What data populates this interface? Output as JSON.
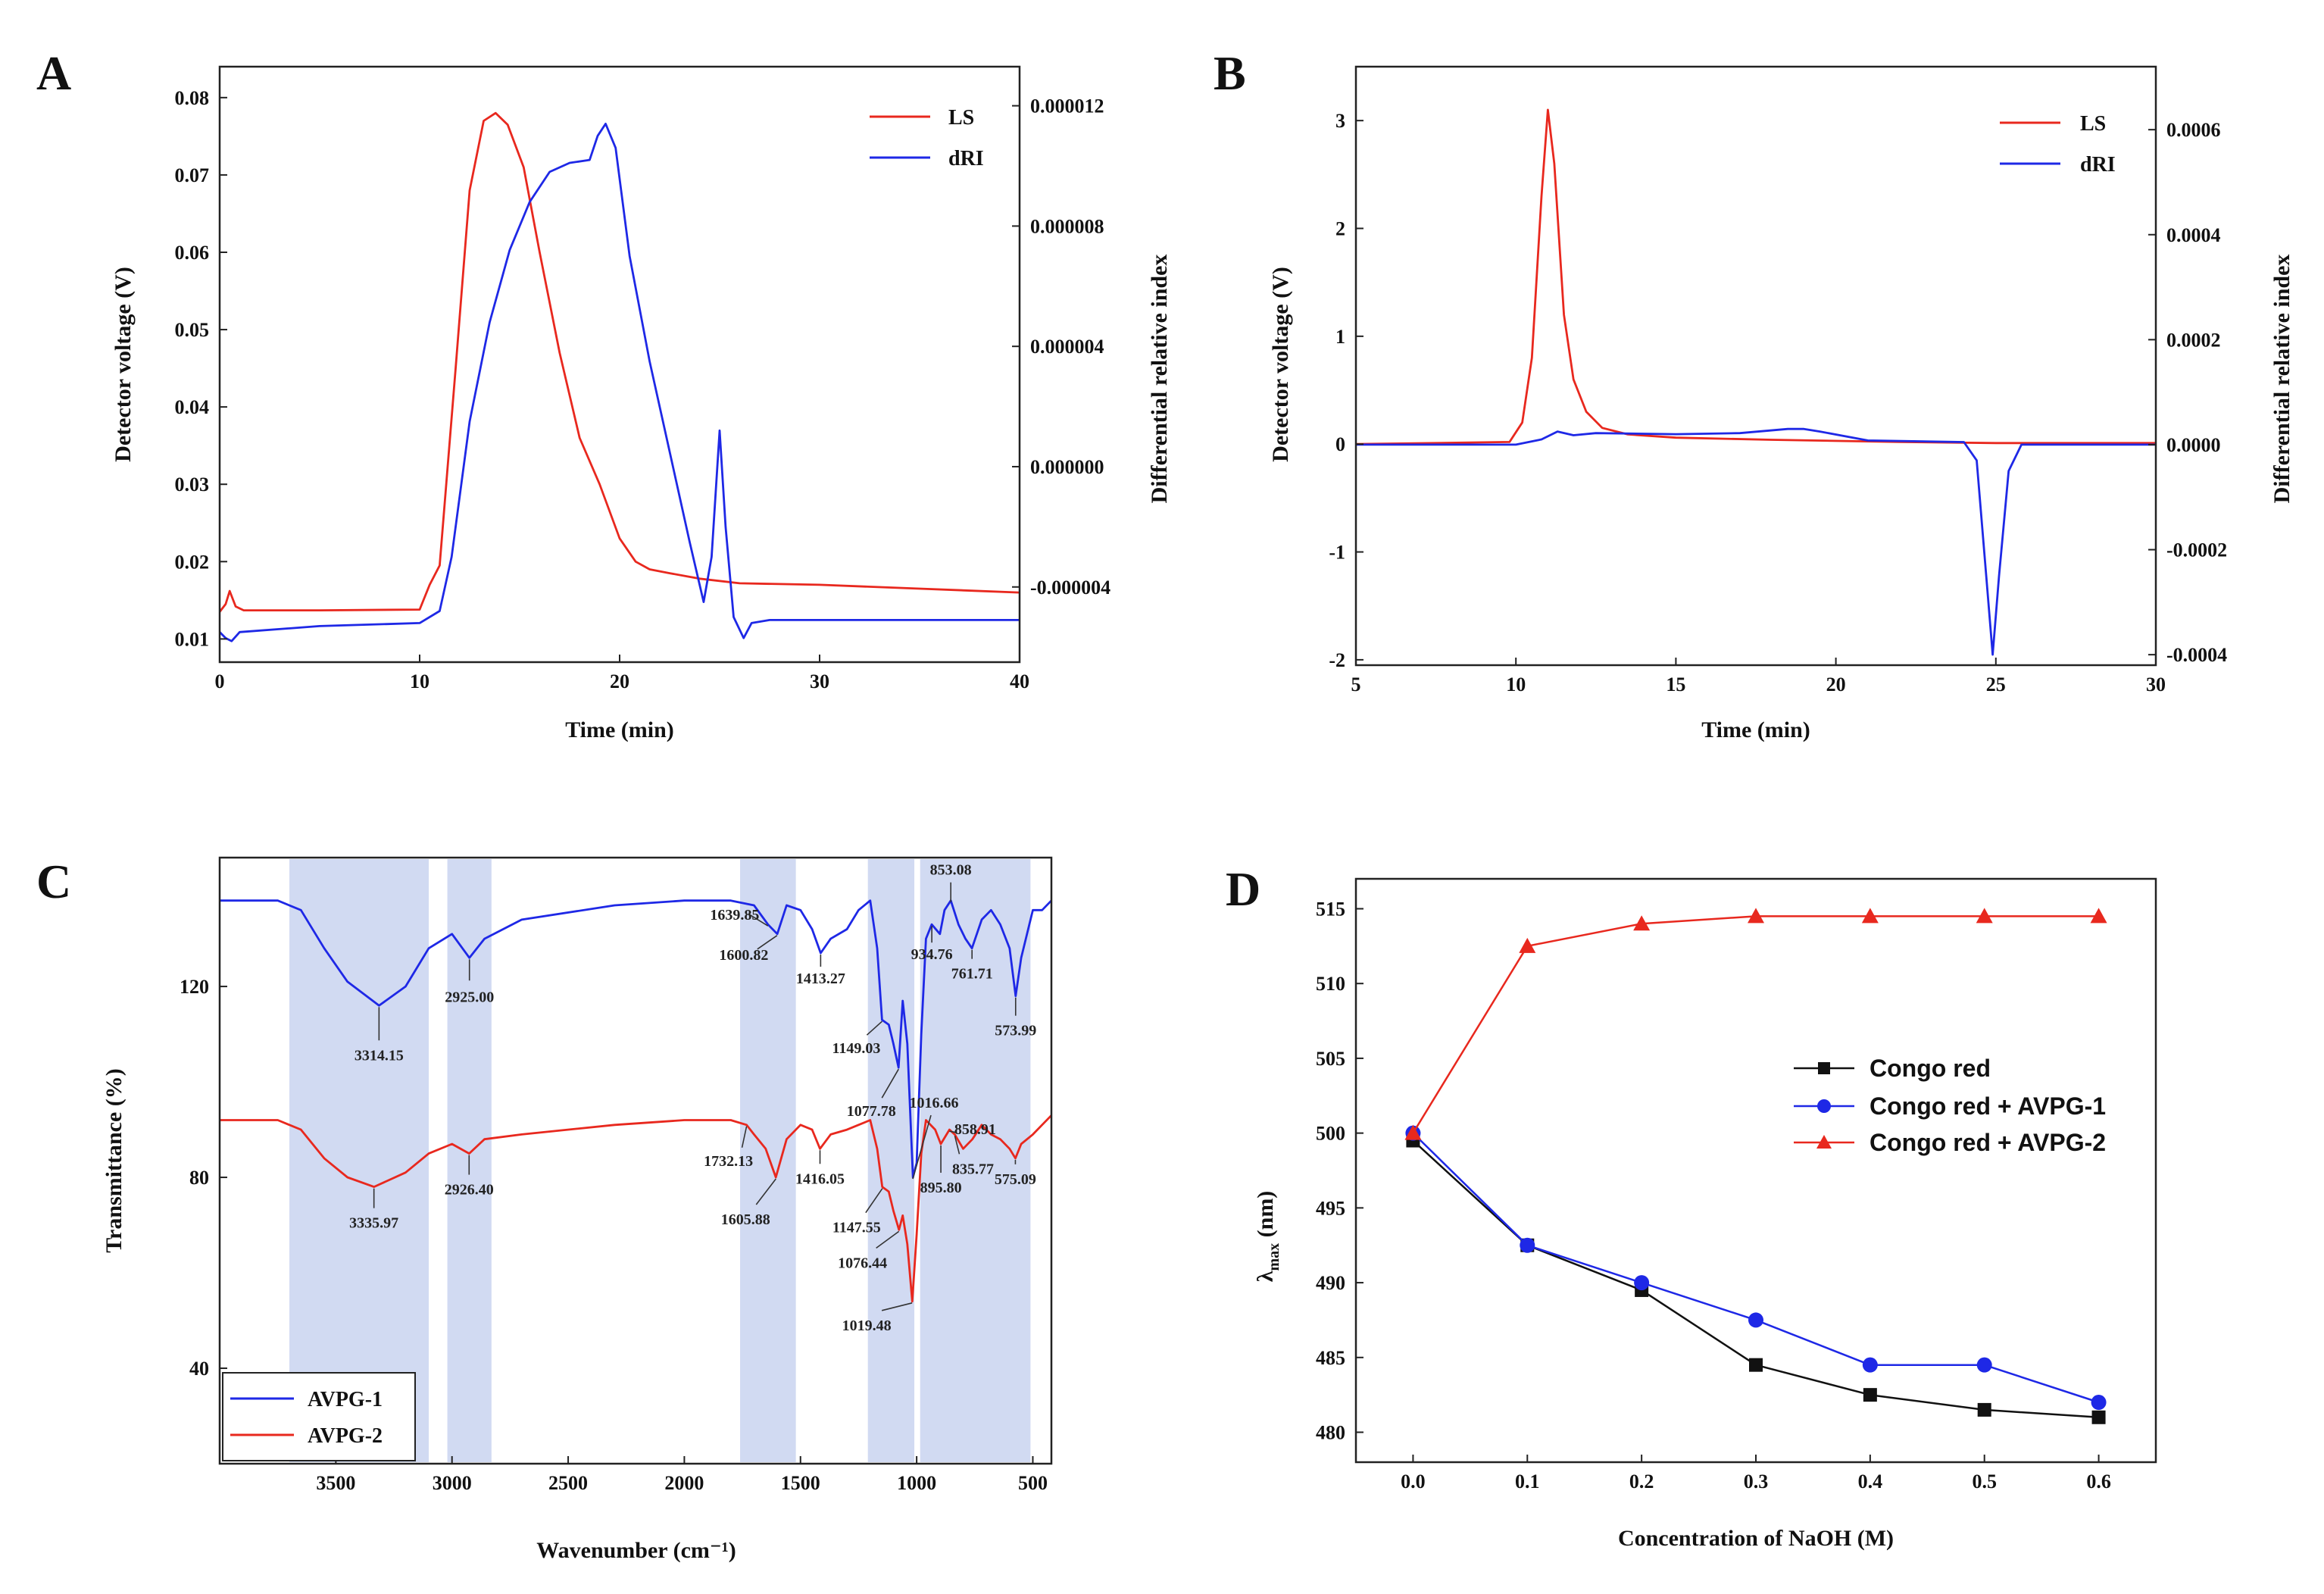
{
  "panels": {
    "A": "A",
    "B": "B",
    "C": "C",
    "D": "D"
  },
  "chart_data": [
    {
      "id": "A",
      "type": "line",
      "xlabel": "Time (min)",
      "ylabel": "Detector voltage (V)",
      "ylabel_right": "Differential relative index",
      "xlim": [
        0,
        40
      ],
      "ylim": [
        0.007,
        0.084
      ],
      "ylim_right": [
        -6.5e-06,
        1.33e-05
      ],
      "xticks": [
        "0",
        "10",
        "20",
        "30",
        "40"
      ],
      "yticks": [
        "0.01",
        "0.02",
        "0.03",
        "0.04",
        "0.05",
        "0.06",
        "0.07",
        "0.08"
      ],
      "yticks_right": [
        "-0.000004",
        "0.000000",
        "0.000004",
        "0.000008",
        "0.000012"
      ],
      "legend_position": "top-right",
      "series": [
        {
          "name": "LS",
          "color": "#e8281e",
          "axis": "left",
          "x": [
            0,
            0.3,
            0.5,
            0.8,
            1.2,
            5,
            10,
            10.5,
            11,
            11.8,
            12.5,
            13.2,
            13.8,
            14.4,
            15.2,
            16,
            17,
            18,
            19,
            20,
            20.8,
            21.5,
            22.5,
            24,
            26,
            30,
            35,
            40
          ],
          "y": [
            0.0135,
            0.0145,
            0.0162,
            0.0142,
            0.0137,
            0.0137,
            0.0138,
            0.017,
            0.0195,
            0.045,
            0.068,
            0.077,
            0.078,
            0.0765,
            0.071,
            0.06,
            0.047,
            0.036,
            0.03,
            0.023,
            0.02,
            0.019,
            0.0185,
            0.0178,
            0.0172,
            0.017,
            0.0165,
            0.016
          ]
        },
        {
          "name": "dRI",
          "color": "#1e28e6",
          "axis": "right",
          "x": [
            0,
            0.3,
            0.6,
            1,
            5,
            10,
            11,
            11.6,
            12.5,
            13.5,
            14.5,
            15.5,
            16.5,
            17.5,
            18.5,
            18.9,
            19.3,
            19.8,
            20.5,
            21.5,
            22.5,
            23.5,
            24.2,
            24.6,
            25,
            25.3,
            25.7,
            26.2,
            26.6,
            27.5,
            30,
            35,
            40
          ],
          "y": [
            -5.5e-06,
            -5.7e-06,
            -5.8e-06,
            -5.5e-06,
            -5.3e-06,
            -5.2e-06,
            -4.8e-06,
            -3e-06,
            1.5e-06,
            4.8e-06,
            7.2e-06,
            8.8e-06,
            9.8e-06,
            1.01e-05,
            1.02e-05,
            1.1e-05,
            1.14e-05,
            1.06e-05,
            7e-06,
            3.5e-06,
            5e-07,
            -2.5e-06,
            -4.5e-06,
            -3e-06,
            1.2e-06,
            -2e-06,
            -5e-06,
            -5.7e-06,
            -5.2e-06,
            -5.1e-06,
            -5.1e-06,
            -5.1e-06,
            -5.1e-06
          ]
        }
      ]
    },
    {
      "id": "B",
      "type": "line",
      "xlabel": "Time (min)",
      "ylabel": "Detector voltage (V)",
      "ylabel_right": "Differential relative index",
      "xlim": [
        5,
        30
      ],
      "ylim": [
        -2.05,
        3.5
      ],
      "ylim_right": [
        -0.00042,
        0.00072
      ],
      "xticks": [
        "5",
        "10",
        "15",
        "20",
        "25",
        "30"
      ],
      "yticks": [
        "-2",
        "-1",
        "0",
        "1",
        "2",
        "3"
      ],
      "yticks_right": [
        "-0.0004",
        "-0.0002",
        "0.0000",
        "0.0002",
        "0.0004",
        "0.0006"
      ],
      "legend_position": "top-right",
      "series": [
        {
          "name": "LS",
          "color": "#e8281e",
          "axis": "left",
          "x": [
            5,
            9.8,
            10.2,
            10.5,
            10.8,
            11.0,
            11.2,
            11.5,
            11.8,
            12.2,
            12.7,
            13.5,
            15,
            18,
            22,
            25,
            30
          ],
          "y": [
            0,
            0.02,
            0.2,
            0.8,
            2.3,
            3.1,
            2.6,
            1.2,
            0.6,
            0.3,
            0.15,
            0.09,
            0.06,
            0.04,
            0.02,
            0.01,
            0.01
          ]
        },
        {
          "name": "dRI",
          "color": "#1e28e6",
          "axis": "right",
          "x": [
            5,
            10,
            10.8,
            11.3,
            11.8,
            12.5,
            15,
            17,
            18.5,
            19,
            19.5,
            21,
            24,
            24.4,
            24.7,
            24.9,
            25.1,
            25.4,
            25.8,
            26.5,
            30
          ],
          "y": [
            0,
            0,
            1e-05,
            2.5e-05,
            1.8e-05,
            2.2e-05,
            2e-05,
            2.2e-05,
            3e-05,
            3e-05,
            2.5e-05,
            8e-06,
            5e-06,
            -3e-05,
            -0.00025,
            -0.0004,
            -0.00025,
            -5e-05,
            0,
            0,
            0
          ]
        }
      ]
    },
    {
      "id": "C",
      "type": "line",
      "xlabel": "Wavenumber (cm⁻¹)",
      "ylabel": "Transmittance (%)",
      "xlim": [
        4000,
        420
      ],
      "ylim": [
        20,
        147
      ],
      "xticks": [
        "3500",
        "3000",
        "2500",
        "2000",
        "1500",
        "1000",
        "500"
      ],
      "yticks": [
        "40",
        "80",
        "120"
      ],
      "shaded_bands": [
        [
          3700,
          3100
        ],
        [
          3020,
          2830
        ],
        [
          1760,
          1520
        ],
        [
          1210,
          1010
        ],
        [
          985,
          510
        ]
      ],
      "legend_position": "bottom-left",
      "series": [
        {
          "name": "AVPG-1",
          "color": "#1e28e6",
          "x": [
            4000,
            3750,
            3650,
            3550,
            3450,
            3314,
            3200,
            3100,
            3000,
            2925,
            2860,
            2700,
            2300,
            2000,
            1800,
            1700,
            1640,
            1600,
            1560,
            1500,
            1450,
            1413,
            1370,
            1300,
            1250,
            1200,
            1170,
            1149,
            1120,
            1100,
            1078,
            1060,
            1040,
            1016,
            1000,
            980,
            960,
            935,
            900,
            880,
            853,
            820,
            790,
            762,
            720,
            680,
            640,
            600,
            574,
            550,
            500,
            460,
            420
          ],
          "y": [
            138,
            138,
            136,
            128,
            121,
            116,
            120,
            128,
            131,
            126,
            130,
            134,
            137,
            138,
            138,
            137,
            133,
            131,
            137,
            136,
            132,
            127,
            130,
            132,
            136,
            138,
            128,
            113,
            112,
            108,
            103,
            117,
            108,
            80,
            83,
            110,
            130,
            133,
            131,
            136,
            138,
            133,
            130,
            128,
            134,
            136,
            133,
            128,
            118,
            126,
            136,
            136,
            138
          ]
        },
        {
          "name": "AVPG-2",
          "color": "#e8281e",
          "x": [
            4000,
            3750,
            3650,
            3550,
            3450,
            3336,
            3200,
            3100,
            3000,
            2926,
            2860,
            2700,
            2300,
            2000,
            1800,
            1732,
            1700,
            1650,
            1606,
            1560,
            1500,
            1450,
            1416,
            1370,
            1300,
            1250,
            1200,
            1170,
            1148,
            1120,
            1100,
            1076,
            1060,
            1040,
            1019,
            1000,
            980,
            960,
            920,
            896,
            859,
            836,
            800,
            760,
            720,
            680,
            640,
            600,
            575,
            550,
            500,
            460,
            420
          ],
          "y": [
            92,
            92,
            90,
            84,
            80,
            78,
            81,
            85,
            87,
            85,
            88,
            89,
            91,
            92,
            92,
            91,
            89,
            86,
            80,
            88,
            91,
            90,
            86,
            89,
            90,
            91,
            92,
            86,
            78,
            77,
            73,
            69,
            72,
            66,
            54,
            68,
            85,
            92,
            90,
            87,
            90,
            89,
            86,
            88,
            91,
            89,
            88,
            86,
            84,
            87,
            89,
            91,
            93
          ]
        }
      ],
      "annotations": {
        "AVPG-1": [
          {
            "x": 3314.15,
            "text": "3314.15"
          },
          {
            "x": 2925.0,
            "text": "2925.00"
          },
          {
            "x": 1639.85,
            "text": "1639.85"
          },
          {
            "x": 1600.82,
            "text": "1600.82"
          },
          {
            "x": 1413.27,
            "text": "1413.27"
          },
          {
            "x": 1149.03,
            "text": "1149.03"
          },
          {
            "x": 1077.78,
            "text": "1077.78"
          },
          {
            "x": 1016.66,
            "text": "1016.66"
          },
          {
            "x": 934.76,
            "text": "934.76"
          },
          {
            "x": 853.08,
            "text": "853.08"
          },
          {
            "x": 761.71,
            "text": "761.71"
          },
          {
            "x": 573.99,
            "text": "573.99"
          }
        ],
        "AVPG-2": [
          {
            "x": 3335.97,
            "text": "3335.97"
          },
          {
            "x": 2926.4,
            "text": "2926.40"
          },
          {
            "x": 1732.13,
            "text": "1732.13"
          },
          {
            "x": 1605.88,
            "text": "1605.88"
          },
          {
            "x": 1416.05,
            "text": "1416.05"
          },
          {
            "x": 1147.55,
            "text": "1147.55"
          },
          {
            "x": 1076.44,
            "text": "1076.44"
          },
          {
            "x": 1019.48,
            "text": "1019.48"
          },
          {
            "x": 895.8,
            "text": "895.80"
          },
          {
            "x": 858.91,
            "text": "858.91"
          },
          {
            "x": 835.77,
            "text": "835.77"
          },
          {
            "x": 575.09,
            "text": "575.09"
          }
        ]
      }
    },
    {
      "id": "D",
      "type": "line",
      "xlabel": "Concentration of NaOH (M)",
      "ylabel": "λmax (nm)",
      "ylabel_main": "λ",
      "ylabel_sub": "max",
      "ylabel_unit": " (nm)",
      "xlim": [
        -0.05,
        0.65
      ],
      "ylim": [
        478,
        517
      ],
      "xticks": [
        "0.0",
        "0.1",
        "0.2",
        "0.3",
        "0.4",
        "0.5",
        "0.6"
      ],
      "yticks": [
        "480",
        "485",
        "490",
        "495",
        "500",
        "505",
        "510",
        "515"
      ],
      "legend_position": "center-right",
      "categories": [
        0.0,
        0.1,
        0.2,
        0.3,
        0.4,
        0.5,
        0.6
      ],
      "series": [
        {
          "name": "Congo red",
          "color": "#111111",
          "marker": "square",
          "values": [
            499.5,
            492.5,
            489.5,
            484.5,
            482.5,
            481.5,
            481.0
          ]
        },
        {
          "name": "Congo red + AVPG-1",
          "color": "#1e28e6",
          "marker": "circle",
          "values": [
            500.0,
            492.5,
            490.0,
            487.5,
            484.5,
            484.5,
            482.0
          ]
        },
        {
          "name": "Congo red + AVPG-2",
          "color": "#e8281e",
          "marker": "triangle",
          "values": [
            500.0,
            512.5,
            514.0,
            514.5,
            514.5,
            514.5,
            514.5
          ]
        }
      ]
    }
  ]
}
